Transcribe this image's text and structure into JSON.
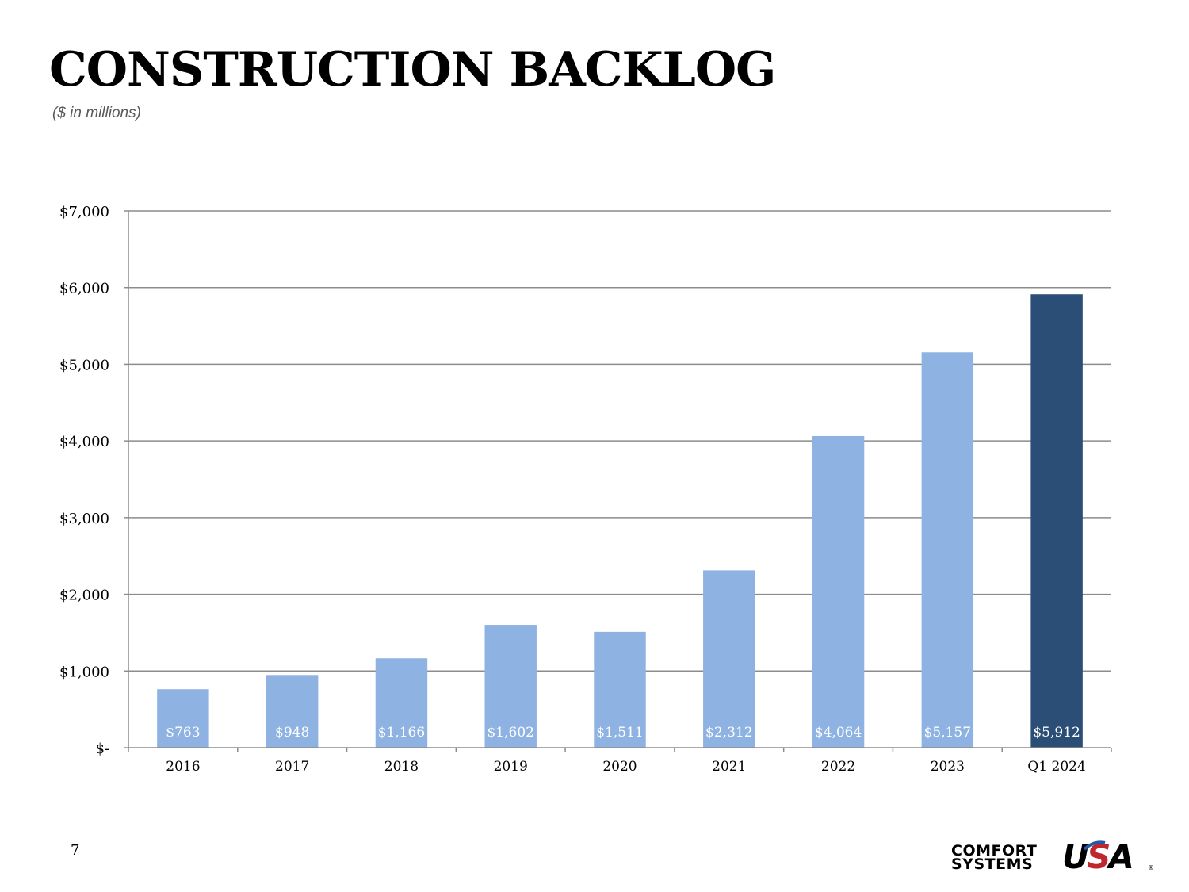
{
  "page": {
    "title": "CONSTRUCTION BACKLOG",
    "subtitle": "($ in millions)",
    "page_number": "7"
  },
  "logo": {
    "line1": "COMFORT",
    "line2": "SYSTEMS",
    "usa_u": "U",
    "usa_s": "S",
    "usa_a": "A",
    "registered": "®"
  },
  "colors": {
    "bar": "#8eb3e2",
    "highlight_bar": "#2b4e76",
    "gridline": "#8c8c8c",
    "bar_label": "#ffffff",
    "logo_red": "#c0272d",
    "logo_blue": "#1f5aa6"
  },
  "chart_data": {
    "type": "bar",
    "categories": [
      "2016",
      "2017",
      "2018",
      "2019",
      "2020",
      "2021",
      "2022",
      "2023",
      "Q1 2024"
    ],
    "values": [
      763,
      948,
      1166,
      1602,
      1511,
      2312,
      4064,
      5157,
      5912
    ],
    "data_labels": [
      "$763",
      "$948",
      "$1,166",
      "$1,602",
      "$1,511",
      "$2,312",
      "$4,064",
      "$5,157",
      "$5,912"
    ],
    "highlight_index": 8,
    "ylim": [
      0,
      7000
    ],
    "yticks": [
      0,
      1000,
      2000,
      3000,
      4000,
      5000,
      6000,
      7000
    ],
    "ytick_labels": [
      "$-",
      "$1,000",
      "$2,000",
      "$3,000",
      "$4,000",
      "$5,000",
      "$6,000",
      "$7,000"
    ],
    "grid": true,
    "legend": "none"
  }
}
